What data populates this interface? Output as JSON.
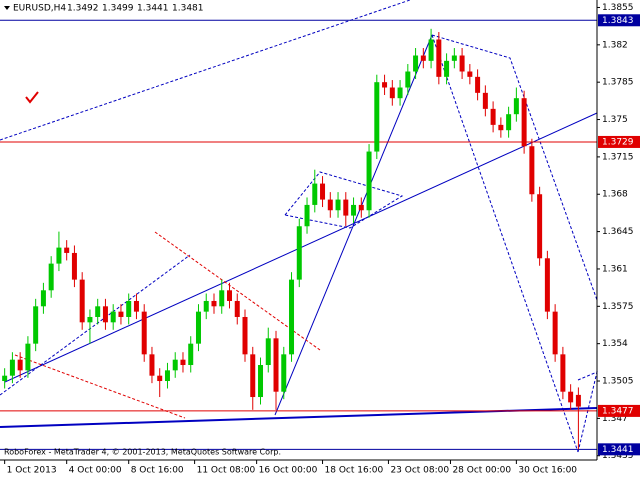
{
  "chart_data": {
    "type": "candlestick",
    "symbol": "EURUSD,H4",
    "footer": "RoboForex - MetaTrader 4, © 2001-2013, MetaQuotes Software Corp.",
    "open": [
      1.3505,
      1.351,
      1.3525,
      1.3515,
      1.354,
      1.3575,
      1.359,
      1.3615,
      1.363,
      1.3625,
      1.36,
      1.356,
      1.3565,
      1.3575,
      1.356,
      1.357,
      1.3565,
      1.358,
      1.357,
      1.353,
      1.351,
      1.3505,
      1.3515,
      1.3525,
      1.352,
      1.354,
      1.357,
      1.358,
      1.3575,
      1.359,
      1.358,
      1.3565,
      1.353,
      1.349,
      1.352,
      1.3545,
      1.3495,
      1.353,
      1.36,
      1.365,
      1.367,
      1.369,
      1.3675,
      1.3665,
      1.3675,
      1.366,
      1.367,
      1.3665,
      1.372,
      1.3785,
      1.378,
      1.377,
      1.378,
      1.3795,
      1.381,
      1.3805,
      1.3825,
      1.379,
      1.3805,
      1.381,
      1.3795,
      1.379,
      1.3775,
      1.376,
      1.3745,
      1.374,
      1.3755,
      1.377,
      1.3725,
      1.368,
      1.362,
      1.357,
      1.353,
      1.3495,
      1.3492
    ],
    "high": [
      1.3517,
      1.3532,
      1.3532,
      1.3547,
      1.3582,
      1.3597,
      1.3622,
      1.3645,
      1.3637,
      1.3632,
      1.3607,
      1.3572,
      1.3582,
      1.3582,
      1.3577,
      1.3577,
      1.3587,
      1.3587,
      1.3577,
      1.3537,
      1.3517,
      1.3522,
      1.3532,
      1.3532,
      1.3547,
      1.3577,
      1.3587,
      1.3587,
      1.36,
      1.3597,
      1.3587,
      1.3572,
      1.3537,
      1.3527,
      1.3555,
      1.3552,
      1.3537,
      1.3607,
      1.3657,
      1.3677,
      1.3703,
      1.3697,
      1.3682,
      1.3682,
      1.3682,
      1.3677,
      1.3677,
      1.3727,
      1.3792,
      1.3792,
      1.3787,
      1.3787,
      1.3802,
      1.3817,
      1.3817,
      1.3835,
      1.3832,
      1.3812,
      1.3817,
      1.3817,
      1.3802,
      1.3797,
      1.3782,
      1.3767,
      1.3752,
      1.3762,
      1.378,
      1.3777,
      1.3732,
      1.3687,
      1.3627,
      1.3577,
      1.3537,
      1.3502,
      1.3499
    ],
    "low": [
      1.3498,
      1.3503,
      1.3508,
      1.3508,
      1.3533,
      1.3568,
      1.3583,
      1.3608,
      1.3618,
      1.3593,
      1.3553,
      1.354,
      1.3558,
      1.3553,
      1.3553,
      1.3558,
      1.3558,
      1.3563,
      1.3523,
      1.3503,
      1.349,
      1.3498,
      1.3508,
      1.3513,
      1.3513,
      1.3533,
      1.3563,
      1.3568,
      1.3568,
      1.3573,
      1.3558,
      1.3523,
      1.3478,
      1.3483,
      1.3513,
      1.3478,
      1.3488,
      1.3523,
      1.3593,
      1.3643,
      1.3663,
      1.3668,
      1.3658,
      1.3658,
      1.365,
      1.3653,
      1.3658,
      1.3658,
      1.3713,
      1.3773,
      1.3763,
      1.3763,
      1.3773,
      1.3788,
      1.3798,
      1.3798,
      1.3783,
      1.3783,
      1.3798,
      1.3788,
      1.3783,
      1.3768,
      1.3753,
      1.3738,
      1.3733,
      1.3733,
      1.3748,
      1.3718,
      1.3673,
      1.3613,
      1.3563,
      1.3523,
      1.3488,
      1.3478,
      1.3441
    ],
    "close": [
      1.351,
      1.3525,
      1.3515,
      1.354,
      1.3575,
      1.359,
      1.3615,
      1.363,
      1.3625,
      1.36,
      1.356,
      1.3565,
      1.3575,
      1.356,
      1.357,
      1.3565,
      1.358,
      1.357,
      1.353,
      1.351,
      1.3505,
      1.3515,
      1.3525,
      1.352,
      1.354,
      1.357,
      1.358,
      1.3575,
      1.359,
      1.358,
      1.3565,
      1.353,
      1.349,
      1.352,
      1.3545,
      1.3495,
      1.353,
      1.36,
      1.365,
      1.367,
      1.369,
      1.3675,
      1.3665,
      1.3675,
      1.366,
      1.367,
      1.3665,
      1.372,
      1.3785,
      1.378,
      1.377,
      1.378,
      1.3795,
      1.381,
      1.3805,
      1.3825,
      1.379,
      1.3805,
      1.381,
      1.3795,
      1.379,
      1.3775,
      1.376,
      1.3745,
      1.374,
      1.3755,
      1.377,
      1.3725,
      1.368,
      1.362,
      1.357,
      1.353,
      1.3495,
      1.3485,
      1.3481
    ],
    "up_color": "#00c800",
    "down_color": "#e00000",
    "xlim": [
      -0.6,
      76.4
    ],
    "xticks": [
      {
        "value": 0,
        "label": "1 Oct 2013"
      },
      {
        "value": 8,
        "label": "4 Oct 00:00"
      },
      {
        "value": 16,
        "label": "8 Oct 16:00"
      },
      {
        "value": 24.5,
        "label": "11 Oct 08:00"
      },
      {
        "value": 32.5,
        "label": "16 Oct 00:00"
      },
      {
        "value": 41,
        "label": "18 Oct 16:00"
      },
      {
        "value": 49.5,
        "label": "23 Oct 08:00"
      },
      {
        "value": 57.5,
        "label": "28 Oct 00:00"
      },
      {
        "value": 66,
        "label": "30 Oct 16:00"
      }
    ],
    "ylim": [
      1.3431,
      1.3862
    ],
    "yticks": [
      1.3855,
      1.382,
      1.3785,
      1.375,
      1.3715,
      1.368,
      1.3645,
      1.361,
      1.3575,
      1.354,
      1.3505,
      1.347,
      1.3435
    ],
    "levels": [
      {
        "value": 1.3843,
        "color": "#0000a0"
      },
      {
        "value": 1.3729,
        "color": "#e00000"
      },
      {
        "value": 1.3477,
        "color": "#e00000"
      },
      {
        "value": 1.3441,
        "color": "#0000a0"
      }
    ]
  }
}
